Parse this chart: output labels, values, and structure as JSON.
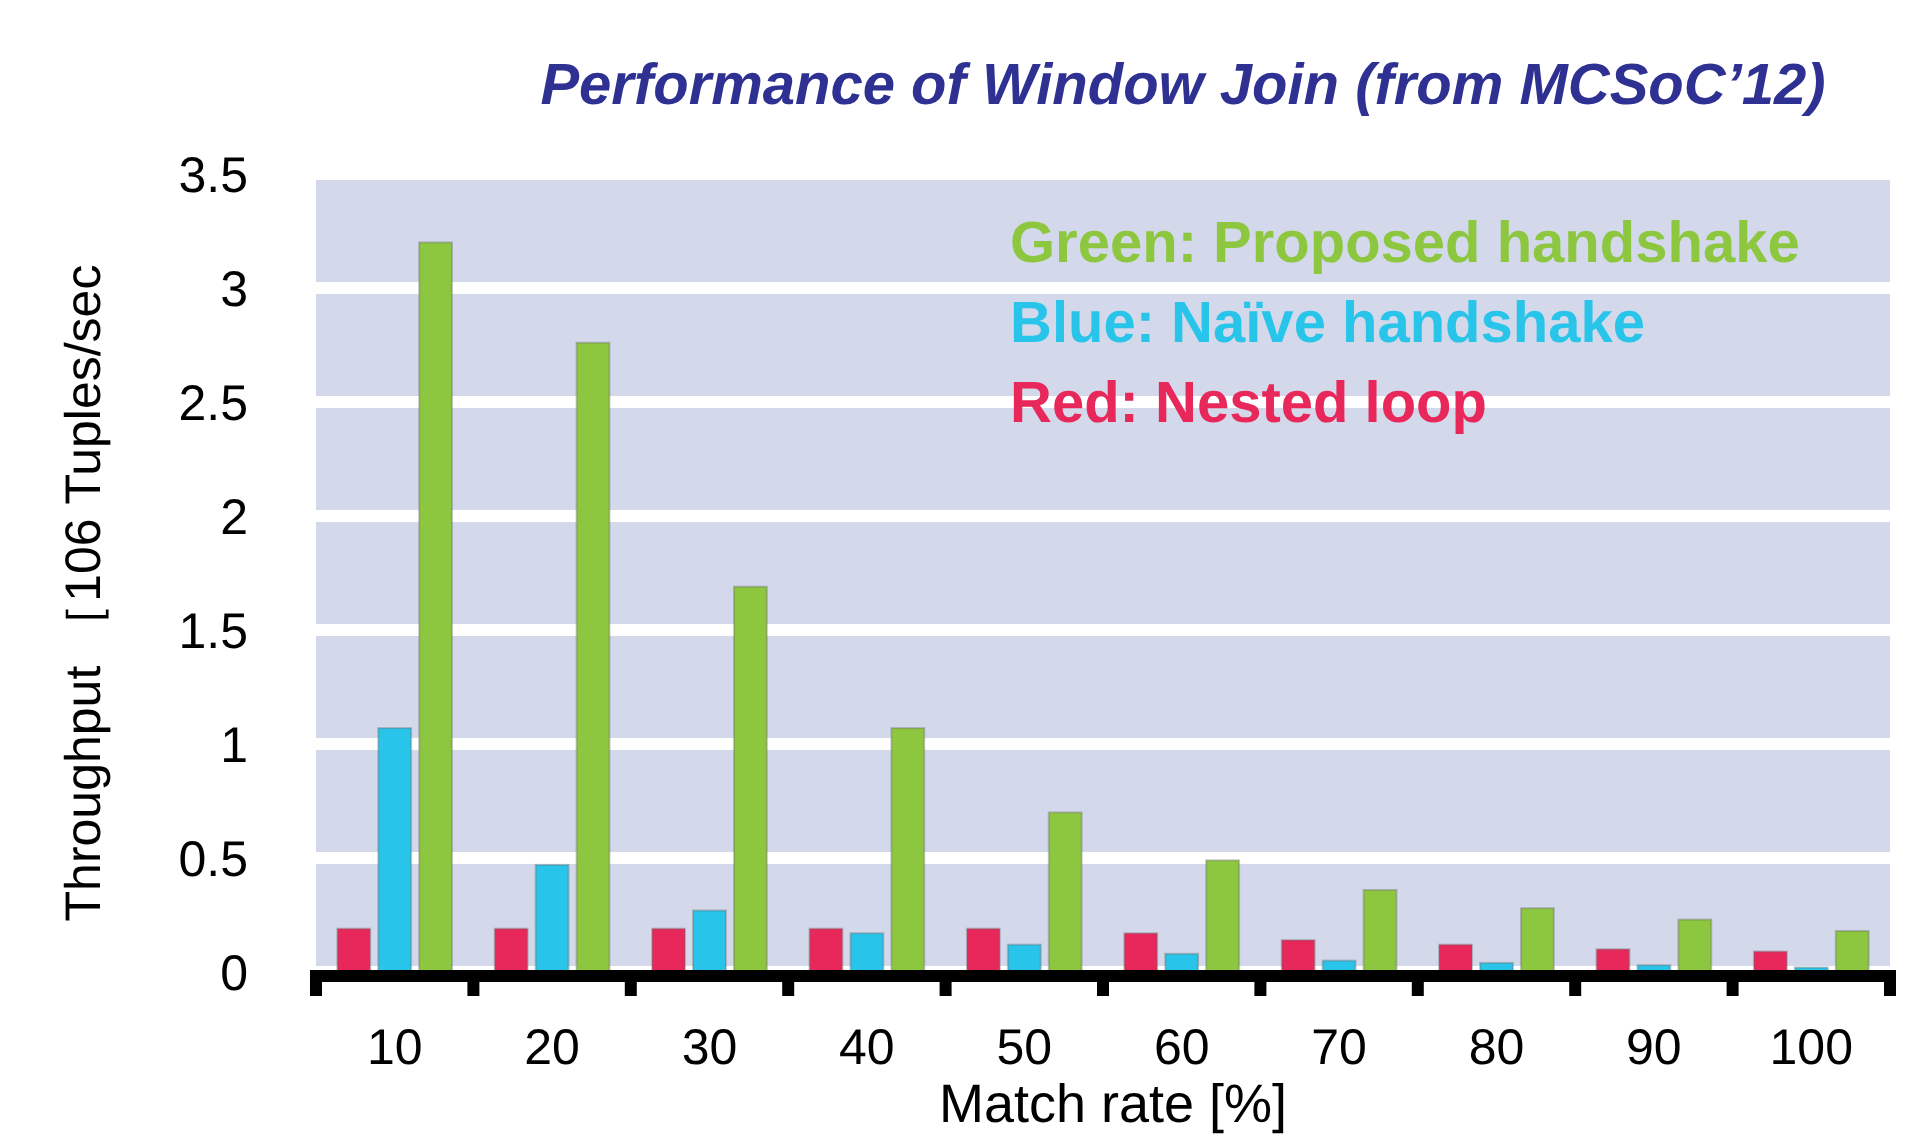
{
  "chart_data": {
    "type": "bar",
    "title": "Performance of Window Join (from MCSoC’12)",
    "xlabel": "Match rate [%]",
    "ylabel": "Throughput ［106 Tuples/sec",
    "categories": [
      "10",
      "20",
      "30",
      "40",
      "50",
      "60",
      "70",
      "80",
      "90",
      "100"
    ],
    "series": [
      {
        "name": "Red: Nested loop",
        "color": "#e8285a",
        "values": [
          0.19,
          0.19,
          0.19,
          0.19,
          0.19,
          0.17,
          0.14,
          0.12,
          0.1,
          0.09
        ]
      },
      {
        "name": "Blue: Naïve handshake",
        "color": "#29c4ea",
        "values": [
          1.07,
          0.47,
          0.27,
          0.17,
          0.12,
          0.08,
          0.05,
          0.04,
          0.03,
          0.02
        ]
      },
      {
        "name": "Green: Proposed handshake",
        "color": "#8dc63f",
        "values": [
          3.2,
          2.76,
          1.69,
          1.07,
          0.7,
          0.49,
          0.36,
          0.28,
          0.23,
          0.18
        ]
      }
    ],
    "ylim": [
      0,
      3.5
    ],
    "yticks": [
      0,
      {
        "value": 0.5,
        "label": "0.5"
      },
      1,
      1.5,
      2,
      2.5,
      3,
      3.5
    ],
    "grid": "y",
    "legend": "top right"
  }
}
